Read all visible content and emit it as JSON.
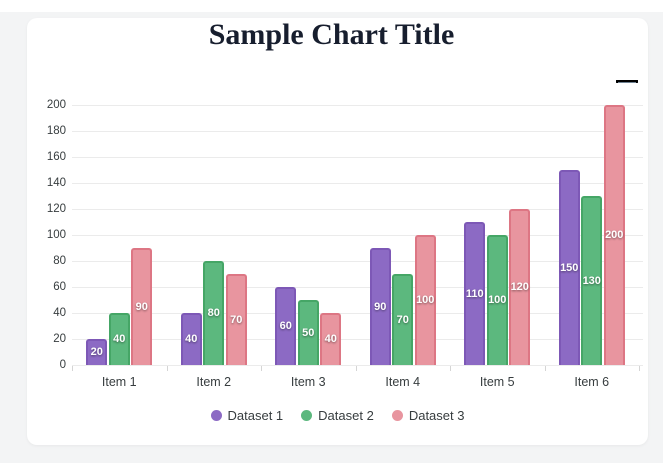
{
  "page": {
    "background_color": "#f3f4f5",
    "card_background_color": "#ffffff"
  },
  "header": {
    "title": "Sample Chart Title",
    "title_color": "#171e2e"
  },
  "toolbar": {
    "menu_icon": "hamburger-menu-icon"
  },
  "chart_data": {
    "type": "bar",
    "title": "Sample Chart Title",
    "categories": [
      "Item 1",
      "Item 2",
      "Item 3",
      "Item 4",
      "Item 5",
      "Item 6"
    ],
    "series": [
      {
        "name": "Dataset 1",
        "color": "#8c6ac4",
        "border_color": "#7d58b6",
        "values": [
          20,
          40,
          60,
          90,
          110,
          150
        ]
      },
      {
        "name": "Dataset 2",
        "color": "#5cb87e",
        "border_color": "#45a666",
        "values": [
          40,
          80,
          50,
          70,
          100,
          130
        ]
      },
      {
        "name": "Dataset 3",
        "color": "#e8959f",
        "border_color": "#dd7684",
        "values": [
          90,
          70,
          40,
          100,
          120,
          200
        ]
      }
    ],
    "xlabel": "",
    "ylabel": "",
    "ylim": [
      0,
      200
    ],
    "ytick_step": 20,
    "grid": true,
    "grid_color": "#ebebeb",
    "data_labels": true,
    "data_label_color": "#ffffff",
    "legend_position": "bottom",
    "axis_text_color": "#373d3f"
  }
}
